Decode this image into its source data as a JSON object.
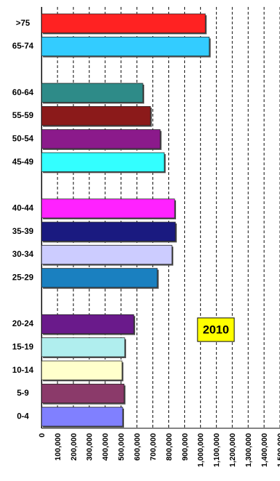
{
  "chart_data": {
    "type": "barh",
    "categories": [
      ">75",
      "65-74",
      null,
      "60-64",
      "55-59",
      "50-54",
      "45-49",
      null,
      "40-44",
      "35-39",
      "30-34",
      "25-29",
      null,
      "20-24",
      "15-19",
      "10-14",
      "5-9",
      "0-4"
    ],
    "values": [
      1030000,
      1055000,
      null,
      637000,
      685000,
      746000,
      772000,
      null,
      837000,
      842000,
      820000,
      728000,
      null,
      580000,
      523000,
      506000,
      519000,
      510000
    ],
    "colors": [
      "#ff2222",
      "#33ccff",
      null,
      "#2e8b88",
      "#8b1a1a",
      "#8b1a8b",
      "#33ffff",
      null,
      "#ff22ff",
      "#1a1a80",
      "#ccccff",
      "#1a80c0",
      null,
      "#6a1a8b",
      "#b0eeee",
      "#ffffcc",
      "#8b3a6a",
      "#8080ff"
    ],
    "xlim": [
      0,
      1500000
    ],
    "xticks": [
      0,
      {
        "value": 100000,
        "label": "100,000"
      },
      {
        "value": 200000,
        "label": "200,000"
      },
      {
        "value": 300000,
        "label": "300,000"
      },
      {
        "value": 400000,
        "label": "400,000"
      },
      {
        "value": 500000,
        "label": "500,000"
      },
      {
        "value": 600000,
        "label": "600,000"
      },
      {
        "value": 700000,
        "label": "700,000"
      },
      {
        "value": 800000,
        "label": "800,000"
      },
      {
        "value": 900000,
        "label": "900,000"
      },
      {
        "value": 1000000,
        "label": "1,000,000"
      },
      {
        "value": 1100000,
        "label": "1,100,000"
      },
      {
        "value": 1200000,
        "label": "1,200,000"
      },
      {
        "value": 1300000,
        "label": "1,300,000"
      },
      {
        "value": 1400000,
        "label": "1,400,000"
      },
      {
        "value": 1500000,
        "label": "1,500,000"
      }
    ],
    "grid": true,
    "annotation": "2010"
  }
}
